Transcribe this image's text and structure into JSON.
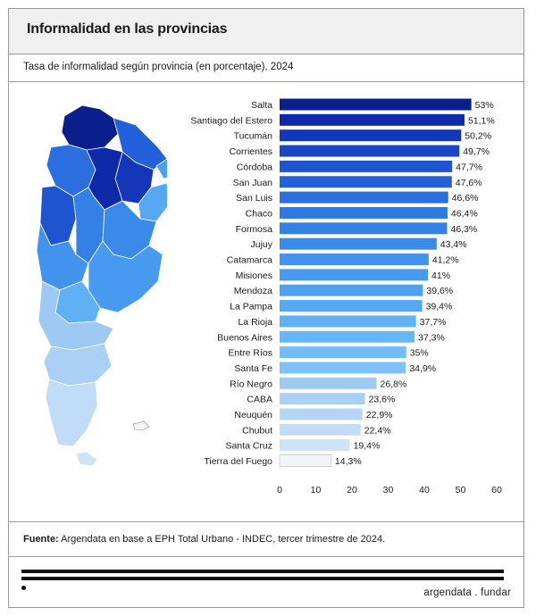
{
  "header": {
    "title": "Informalidad en las provincias",
    "subtitle": "Tasa de informalidad según provincia (en porcentaje), 2024"
  },
  "footer": {
    "source_label": "Fuente:",
    "source_text": " Argendata en base a EPH Total Urbano - INDEC, tercer trimestre de 2024.",
    "brand": "argendata . fundar"
  },
  "map": {
    "icon": "argentina-map-icon"
  },
  "chart_data": {
    "type": "bar",
    "orientation": "horizontal",
    "categories": [
      "Salta",
      "Santiago del Estero",
      "Tucumán",
      "Corrientes",
      "Córdoba",
      "San Juan",
      "San Luis",
      "Chaco",
      "Formosa",
      "Jujuy",
      "Catamarca",
      "Misiones",
      "Mendoza",
      "La Pampa",
      "La Rioja",
      "Buenos Aires",
      "Entre Ríos",
      "Santa Fe",
      "Río Negro",
      "CABA",
      "Neuquén",
      "Chubut",
      "Santa Cruz",
      "Tierra del Fuego"
    ],
    "values": [
      53,
      51.1,
      50.2,
      49.7,
      47.7,
      47.6,
      46.6,
      46.4,
      46.3,
      43.4,
      41.2,
      41,
      39.6,
      39.4,
      37.7,
      37.3,
      35,
      34.9,
      26.8,
      23.6,
      22.9,
      22.4,
      19.4,
      14.3
    ],
    "value_labels": [
      "53%",
      "51,1%",
      "50,2%",
      "49,7%",
      "47,7%",
      "47,6%",
      "46,6%",
      "46,4%",
      "46,3%",
      "43,4%",
      "41,2%",
      "41%",
      "39,6%",
      "39,4%",
      "37,7%",
      "37,3%",
      "35%",
      "34,9%",
      "26,8%",
      "23,6%",
      "22,9%",
      "22,4%",
      "19,4%",
      "14,3%"
    ],
    "colors": [
      "#0b1f8c",
      "#0f2aa8",
      "#1337b8",
      "#1a45c4",
      "#1f54d0",
      "#2361da",
      "#2a6ee0",
      "#2f77e3",
      "#3380e6",
      "#3a8aea",
      "#4193ed",
      "#479af0",
      "#4ea1f2",
      "#56a8f3",
      "#5fb0f4",
      "#67b6f5",
      "#72bdf6",
      "#7dc3f7",
      "#9ec9f2",
      "#aad1f4",
      "#b5d7f5",
      "#c0dcf6",
      "#cfe3f7",
      "#f2f4f7"
    ],
    "xlim": [
      0,
      60
    ],
    "xticks": [
      0,
      10,
      20,
      30,
      40,
      50,
      60
    ],
    "grid": false
  }
}
